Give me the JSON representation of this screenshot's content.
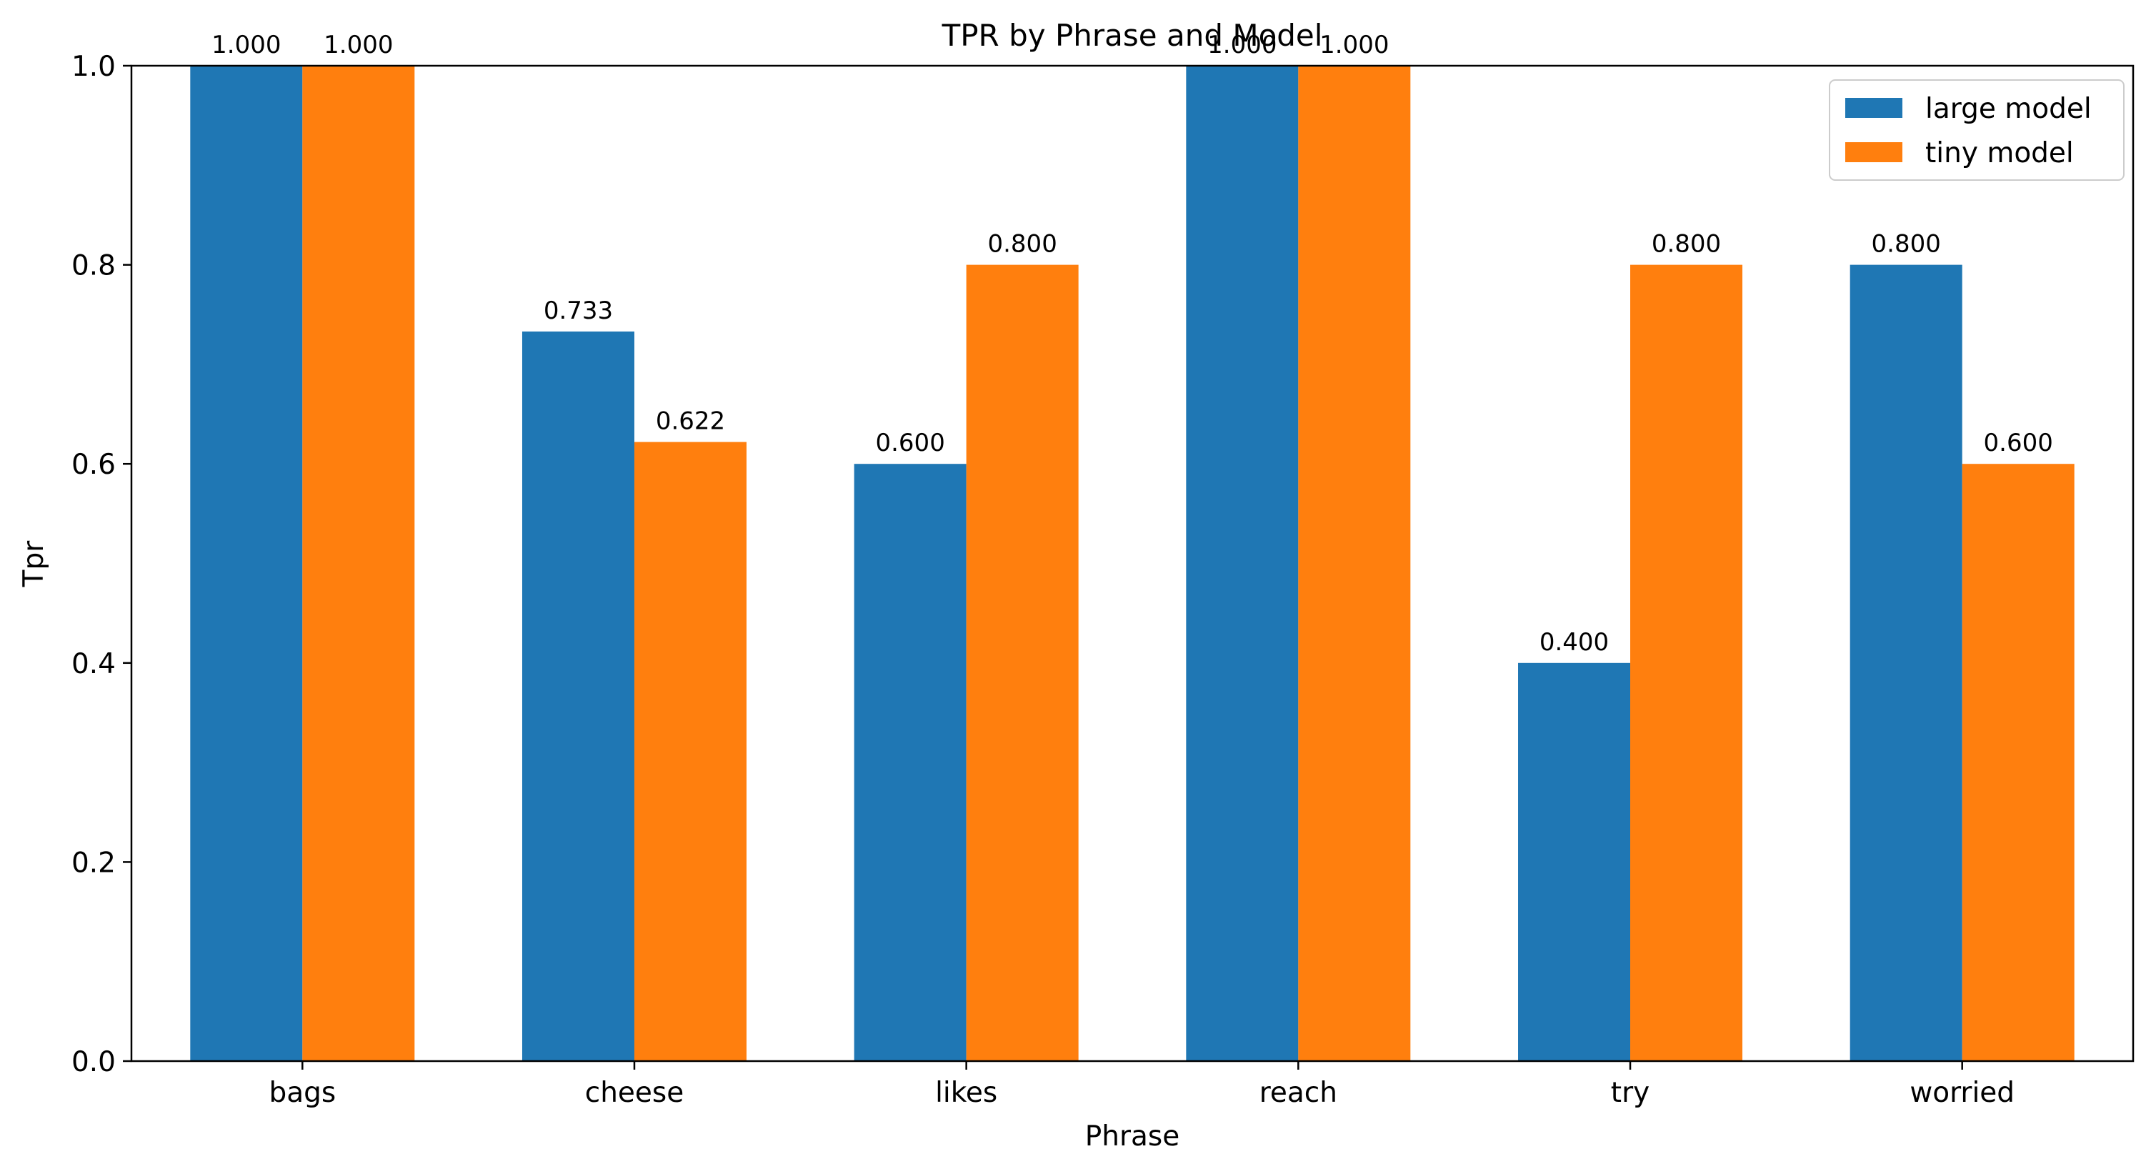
{
  "colors": {
    "large": "#1f77b4",
    "tiny": "#ff7f0e",
    "axis": "#000000",
    "legend_border": "#cccccc"
  },
  "chart_data": {
    "type": "bar",
    "title": "TPR by Phrase and Model",
    "xlabel": "Phrase",
    "ylabel": "Tpr",
    "ylim": [
      0,
      1.0
    ],
    "yticks": [
      "0.0",
      "0.2",
      "0.4",
      "0.6",
      "0.8",
      "1.0"
    ],
    "categories": [
      "bags",
      "cheese",
      "likes",
      "reach",
      "try",
      "worried"
    ],
    "series": [
      {
        "name": "large model",
        "color_key": "large",
        "values": [
          1.0,
          0.733,
          0.6,
          1.0,
          0.4,
          0.8
        ],
        "labels": [
          "1.000",
          "0.733",
          "0.600",
          "1.000",
          "0.400",
          "0.800"
        ]
      },
      {
        "name": "tiny model",
        "color_key": "tiny",
        "values": [
          1.0,
          0.622,
          0.8,
          1.0,
          0.8,
          0.6
        ],
        "labels": [
          "1.000",
          "0.622",
          "0.800",
          "1.000",
          "0.800",
          "0.600"
        ]
      }
    ],
    "grid": false,
    "legend_position": "top-right"
  }
}
